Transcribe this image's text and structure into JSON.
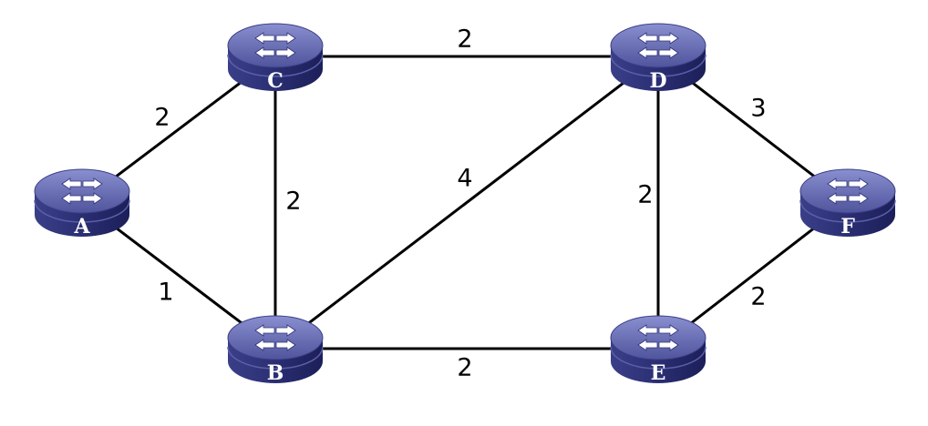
{
  "colors": {
    "router_top": "#6a6fb5",
    "router_side": "#2e327a",
    "router_dark": "#1e2160",
    "edge": "#000000",
    "label_text": "#ffffff",
    "weight_text": "#000000"
  },
  "nodes": [
    {
      "id": "A",
      "label": "A",
      "icon": "router-icon"
    },
    {
      "id": "B",
      "label": "B",
      "icon": "router-icon"
    },
    {
      "id": "C",
      "label": "C",
      "icon": "router-icon"
    },
    {
      "id": "D",
      "label": "D",
      "icon": "router-icon"
    },
    {
      "id": "E",
      "label": "E",
      "icon": "router-icon"
    },
    {
      "id": "F",
      "label": "F",
      "icon": "router-icon"
    }
  ],
  "edges": [
    {
      "from": "A",
      "to": "C",
      "weight": "2"
    },
    {
      "from": "A",
      "to": "B",
      "weight": "1"
    },
    {
      "from": "C",
      "to": "B",
      "weight": "2"
    },
    {
      "from": "C",
      "to": "D",
      "weight": "2"
    },
    {
      "from": "B",
      "to": "D",
      "weight": "4"
    },
    {
      "from": "B",
      "to": "E",
      "weight": "2"
    },
    {
      "from": "D",
      "to": "E",
      "weight": "2"
    },
    {
      "from": "D",
      "to": "F",
      "weight": "3"
    },
    {
      "from": "E",
      "to": "F",
      "weight": "2"
    }
  ]
}
